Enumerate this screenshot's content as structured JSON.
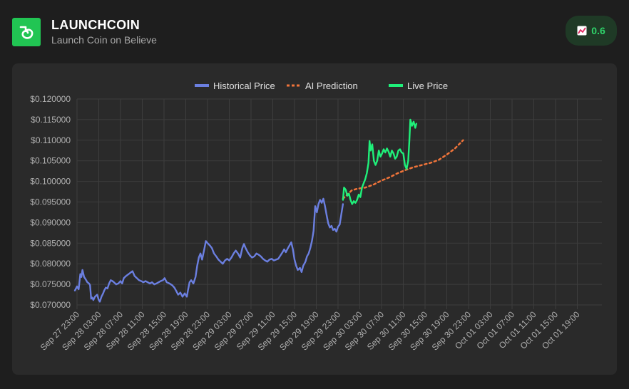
{
  "header": {
    "title": "LAUNCHCOIN",
    "subtitle": "Launch Coin on Believe",
    "badge_value": "0.6",
    "badge_icon": "trending-chart-icon",
    "logo_icon": "believe-logo-icon"
  },
  "colors": {
    "historical": "#6b7fe0",
    "prediction": "#f0743a",
    "live": "#1ff07a",
    "accent": "#21c553"
  },
  "chart_data": {
    "type": "line",
    "legend": [
      "Historical Price",
      "AI Prediction",
      "Live Price"
    ],
    "legend_position": "top",
    "grid": true,
    "ylim": [
      0.07,
      0.12
    ],
    "y_ticks": [
      "$0.120000",
      "$0.115000",
      "$0.110000",
      "$0.105000",
      "$0.100000",
      "$0.095000",
      "$0.090000",
      "$0.085000",
      "$0.080000",
      "$0.075000",
      "$0.070000"
    ],
    "x_ticks": [
      "Sep 27 23:00",
      "Sep 28 03:00",
      "Sep 28 07:00",
      "Sep 28 11:00",
      "Sep 28 15:00",
      "Sep 28 19:00",
      "Sep 28 23:00",
      "Sep 29 03:00",
      "Sep 29 07:00",
      "Sep 29 11:00",
      "Sep 29 15:00",
      "Sep 29 19:00",
      "Sep 29 23:00",
      "Sep 30 03:00",
      "Sep 30 07:00",
      "Sep 30 11:00",
      "Sep 30 15:00",
      "Sep 30 19:00",
      "Sep 30 23:00",
      "Oct 01 03:00",
      "Oct 01 07:00",
      "Oct 01 11:00",
      "Oct 01 15:00",
      "Oct 01 19:00"
    ],
    "series": [
      {
        "name": "Historical Price",
        "style": "solid",
        "points": [
          [
            -0.4,
            0.0735
          ],
          [
            0,
            0.0745
          ],
          [
            0.3,
            0.0738
          ],
          [
            0.6,
            0.0775
          ],
          [
            0.8,
            0.0768
          ],
          [
            1,
            0.0785
          ],
          [
            1.3,
            0.0768
          ],
          [
            1.6,
            0.0762
          ],
          [
            1.9,
            0.0755
          ],
          [
            2.2,
            0.0752
          ],
          [
            2.4,
            0.0748
          ],
          [
            2.6,
            0.0715
          ],
          [
            2.8,
            0.0718
          ],
          [
            3.0,
            0.0712
          ],
          [
            3.3,
            0.072
          ],
          [
            3.7,
            0.0725
          ],
          [
            4.0,
            0.0712
          ],
          [
            4.2,
            0.0708
          ],
          [
            4.5,
            0.072
          ],
          [
            4.8,
            0.0728
          ],
          [
            5.0,
            0.0735
          ],
          [
            5.3,
            0.0742
          ],
          [
            5.6,
            0.074
          ],
          [
            5.9,
            0.0752
          ],
          [
            6.2,
            0.076
          ],
          [
            6.5,
            0.0758
          ],
          [
            6.8,
            0.0755
          ],
          [
            7.2,
            0.075
          ],
          [
            7.6,
            0.0752
          ],
          [
            8.0,
            0.0758
          ],
          [
            8.3,
            0.0752
          ],
          [
            8.6,
            0.0765
          ],
          [
            9.0,
            0.077
          ],
          [
            9.5,
            0.0775
          ],
          [
            9.8,
            0.0778
          ],
          [
            10.2,
            0.0782
          ],
          [
            10.6,
            0.077
          ],
          [
            11.0,
            0.0765
          ],
          [
            11.4,
            0.076
          ],
          [
            11.8,
            0.0758
          ],
          [
            12.2,
            0.0755
          ],
          [
            12.6,
            0.0758
          ],
          [
            13.0,
            0.0755
          ],
          [
            13.4,
            0.0752
          ],
          [
            13.8,
            0.0755
          ],
          [
            14.2,
            0.075
          ],
          [
            14.6,
            0.0752
          ],
          [
            15.0,
            0.0755
          ],
          [
            15.4,
            0.0758
          ],
          [
            15.8,
            0.076
          ],
          [
            16.1,
            0.0765
          ],
          [
            16.5,
            0.0755
          ],
          [
            17.0,
            0.0752
          ],
          [
            17.5,
            0.0748
          ],
          [
            17.9,
            0.0742
          ],
          [
            18.2,
            0.0735
          ],
          [
            18.6,
            0.0725
          ],
          [
            19.0,
            0.073
          ],
          [
            19.4,
            0.072
          ],
          [
            19.8,
            0.0728
          ],
          [
            20.2,
            0.072
          ],
          [
            20.4,
            0.0735
          ],
          [
            20.7,
            0.0755
          ],
          [
            21.0,
            0.076
          ],
          [
            21.4,
            0.0752
          ],
          [
            21.8,
            0.0768
          ],
          [
            22.1,
            0.0795
          ],
          [
            22.4,
            0.0815
          ],
          [
            22.7,
            0.0825
          ],
          [
            23.0,
            0.081
          ],
          [
            23.4,
            0.0835
          ],
          [
            23.7,
            0.0855
          ],
          [
            24.0,
            0.085
          ],
          [
            24.4,
            0.0845
          ],
          [
            24.8,
            0.0838
          ],
          [
            25.2,
            0.0825
          ],
          [
            25.6,
            0.0818
          ],
          [
            26.0,
            0.081
          ],
          [
            26.4,
            0.0805
          ],
          [
            26.8,
            0.08
          ],
          [
            27.2,
            0.0808
          ],
          [
            27.6,
            0.0812
          ],
          [
            28.0,
            0.0808
          ],
          [
            28.4,
            0.0815
          ],
          [
            28.8,
            0.0825
          ],
          [
            29.2,
            0.0832
          ],
          [
            29.6,
            0.0825
          ],
          [
            30.0,
            0.0815
          ],
          [
            30.4,
            0.0838
          ],
          [
            30.7,
            0.0848
          ],
          [
            31.0,
            0.0838
          ],
          [
            31.4,
            0.0828
          ],
          [
            31.8,
            0.082
          ],
          [
            32.2,
            0.0815
          ],
          [
            32.6,
            0.0818
          ],
          [
            33.0,
            0.0825
          ],
          [
            33.4,
            0.0822
          ],
          [
            33.8,
            0.0818
          ],
          [
            34.2,
            0.0812
          ],
          [
            34.6,
            0.0808
          ],
          [
            35.0,
            0.0805
          ],
          [
            35.4,
            0.081
          ],
          [
            35.8,
            0.0812
          ],
          [
            36.2,
            0.0808
          ],
          [
            36.6,
            0.081
          ],
          [
            37.0,
            0.0812
          ],
          [
            37.4,
            0.082
          ],
          [
            37.8,
            0.0828
          ],
          [
            38.1,
            0.0835
          ],
          [
            38.4,
            0.0828
          ],
          [
            38.8,
            0.0838
          ],
          [
            39.1,
            0.0845
          ],
          [
            39.4,
            0.0852
          ],
          [
            39.7,
            0.0835
          ],
          [
            40.0,
            0.081
          ],
          [
            40.3,
            0.0795
          ],
          [
            40.6,
            0.0785
          ],
          [
            41.0,
            0.079
          ],
          [
            41.3,
            0.078
          ],
          [
            41.6,
            0.0795
          ],
          [
            42.0,
            0.0805
          ],
          [
            42.3,
            0.0818
          ],
          [
            42.6,
            0.0825
          ],
          [
            42.9,
            0.0838
          ],
          [
            43.2,
            0.0855
          ],
          [
            43.5,
            0.088
          ],
          [
            43.8,
            0.094
          ],
          [
            44.1,
            0.0925
          ],
          [
            44.4,
            0.0945
          ],
          [
            44.7,
            0.0955
          ],
          [
            45.0,
            0.0948
          ],
          [
            45.3,
            0.0958
          ],
          [
            45.6,
            0.094
          ],
          [
            45.9,
            0.0918
          ],
          [
            46.2,
            0.0898
          ],
          [
            46.5,
            0.0888
          ],
          [
            46.8,
            0.0892
          ],
          [
            47.1,
            0.0882
          ],
          [
            47.4,
            0.0885
          ],
          [
            47.7,
            0.0878
          ],
          [
            48.0,
            0.089
          ],
          [
            48.3,
            0.0895
          ],
          [
            48.6,
            0.092
          ],
          [
            48.9,
            0.0945
          ]
        ]
      },
      {
        "name": "AI Prediction",
        "style": "dashed",
        "points": [
          [
            48.9,
            0.0958
          ],
          [
            50.5,
            0.0978
          ],
          [
            51.5,
            0.0982
          ],
          [
            53.0,
            0.0985
          ],
          [
            54.5,
            0.0992
          ],
          [
            56.0,
            0.1002
          ],
          [
            57.5,
            0.101
          ],
          [
            59.0,
            0.102
          ],
          [
            60.5,
            0.1028
          ],
          [
            62.0,
            0.1035
          ],
          [
            63.5,
            0.104
          ],
          [
            65.0,
            0.1045
          ],
          [
            66.5,
            0.1052
          ],
          [
            68.0,
            0.1065
          ],
          [
            69.5,
            0.108
          ],
          [
            71.0,
            0.11
          ]
        ]
      },
      {
        "name": "Live Price",
        "style": "solid",
        "points": [
          [
            48.9,
            0.0955
          ],
          [
            49.1,
            0.0985
          ],
          [
            49.4,
            0.098
          ],
          [
            49.7,
            0.0965
          ],
          [
            50.0,
            0.097
          ],
          [
            50.3,
            0.0955
          ],
          [
            50.6,
            0.0945
          ],
          [
            50.9,
            0.0952
          ],
          [
            51.2,
            0.0948
          ],
          [
            51.5,
            0.0955
          ],
          [
            51.8,
            0.0968
          ],
          [
            52.1,
            0.0962
          ],
          [
            52.4,
            0.0985
          ],
          [
            52.7,
            0.0995
          ],
          [
            53.0,
            0.1005
          ],
          [
            53.3,
            0.102
          ],
          [
            53.6,
            0.1045
          ],
          [
            53.8,
            0.1098
          ],
          [
            54.0,
            0.1075
          ],
          [
            54.3,
            0.109
          ],
          [
            54.6,
            0.105
          ],
          [
            54.9,
            0.104
          ],
          [
            55.2,
            0.105
          ],
          [
            55.5,
            0.1075
          ],
          [
            55.8,
            0.106
          ],
          [
            56.1,
            0.1068
          ],
          [
            56.4,
            0.1078
          ],
          [
            56.7,
            0.107
          ],
          [
            57.0,
            0.108
          ],
          [
            57.3,
            0.1072
          ],
          [
            57.6,
            0.106
          ],
          [
            57.9,
            0.1075
          ],
          [
            58.2,
            0.1068
          ],
          [
            58.5,
            0.1055
          ],
          [
            58.8,
            0.106
          ],
          [
            59.1,
            0.1075
          ],
          [
            59.4,
            0.1078
          ],
          [
            59.7,
            0.107
          ],
          [
            60.0,
            0.1068
          ],
          [
            60.3,
            0.104
          ],
          [
            60.6,
            0.103
          ],
          [
            60.9,
            0.105
          ],
          [
            61.1,
            0.1095
          ],
          [
            61.3,
            0.115
          ],
          [
            61.6,
            0.1135
          ],
          [
            61.9,
            0.1145
          ],
          [
            62.2,
            0.113
          ],
          [
            62.4,
            0.114
          ]
        ]
      }
    ]
  }
}
